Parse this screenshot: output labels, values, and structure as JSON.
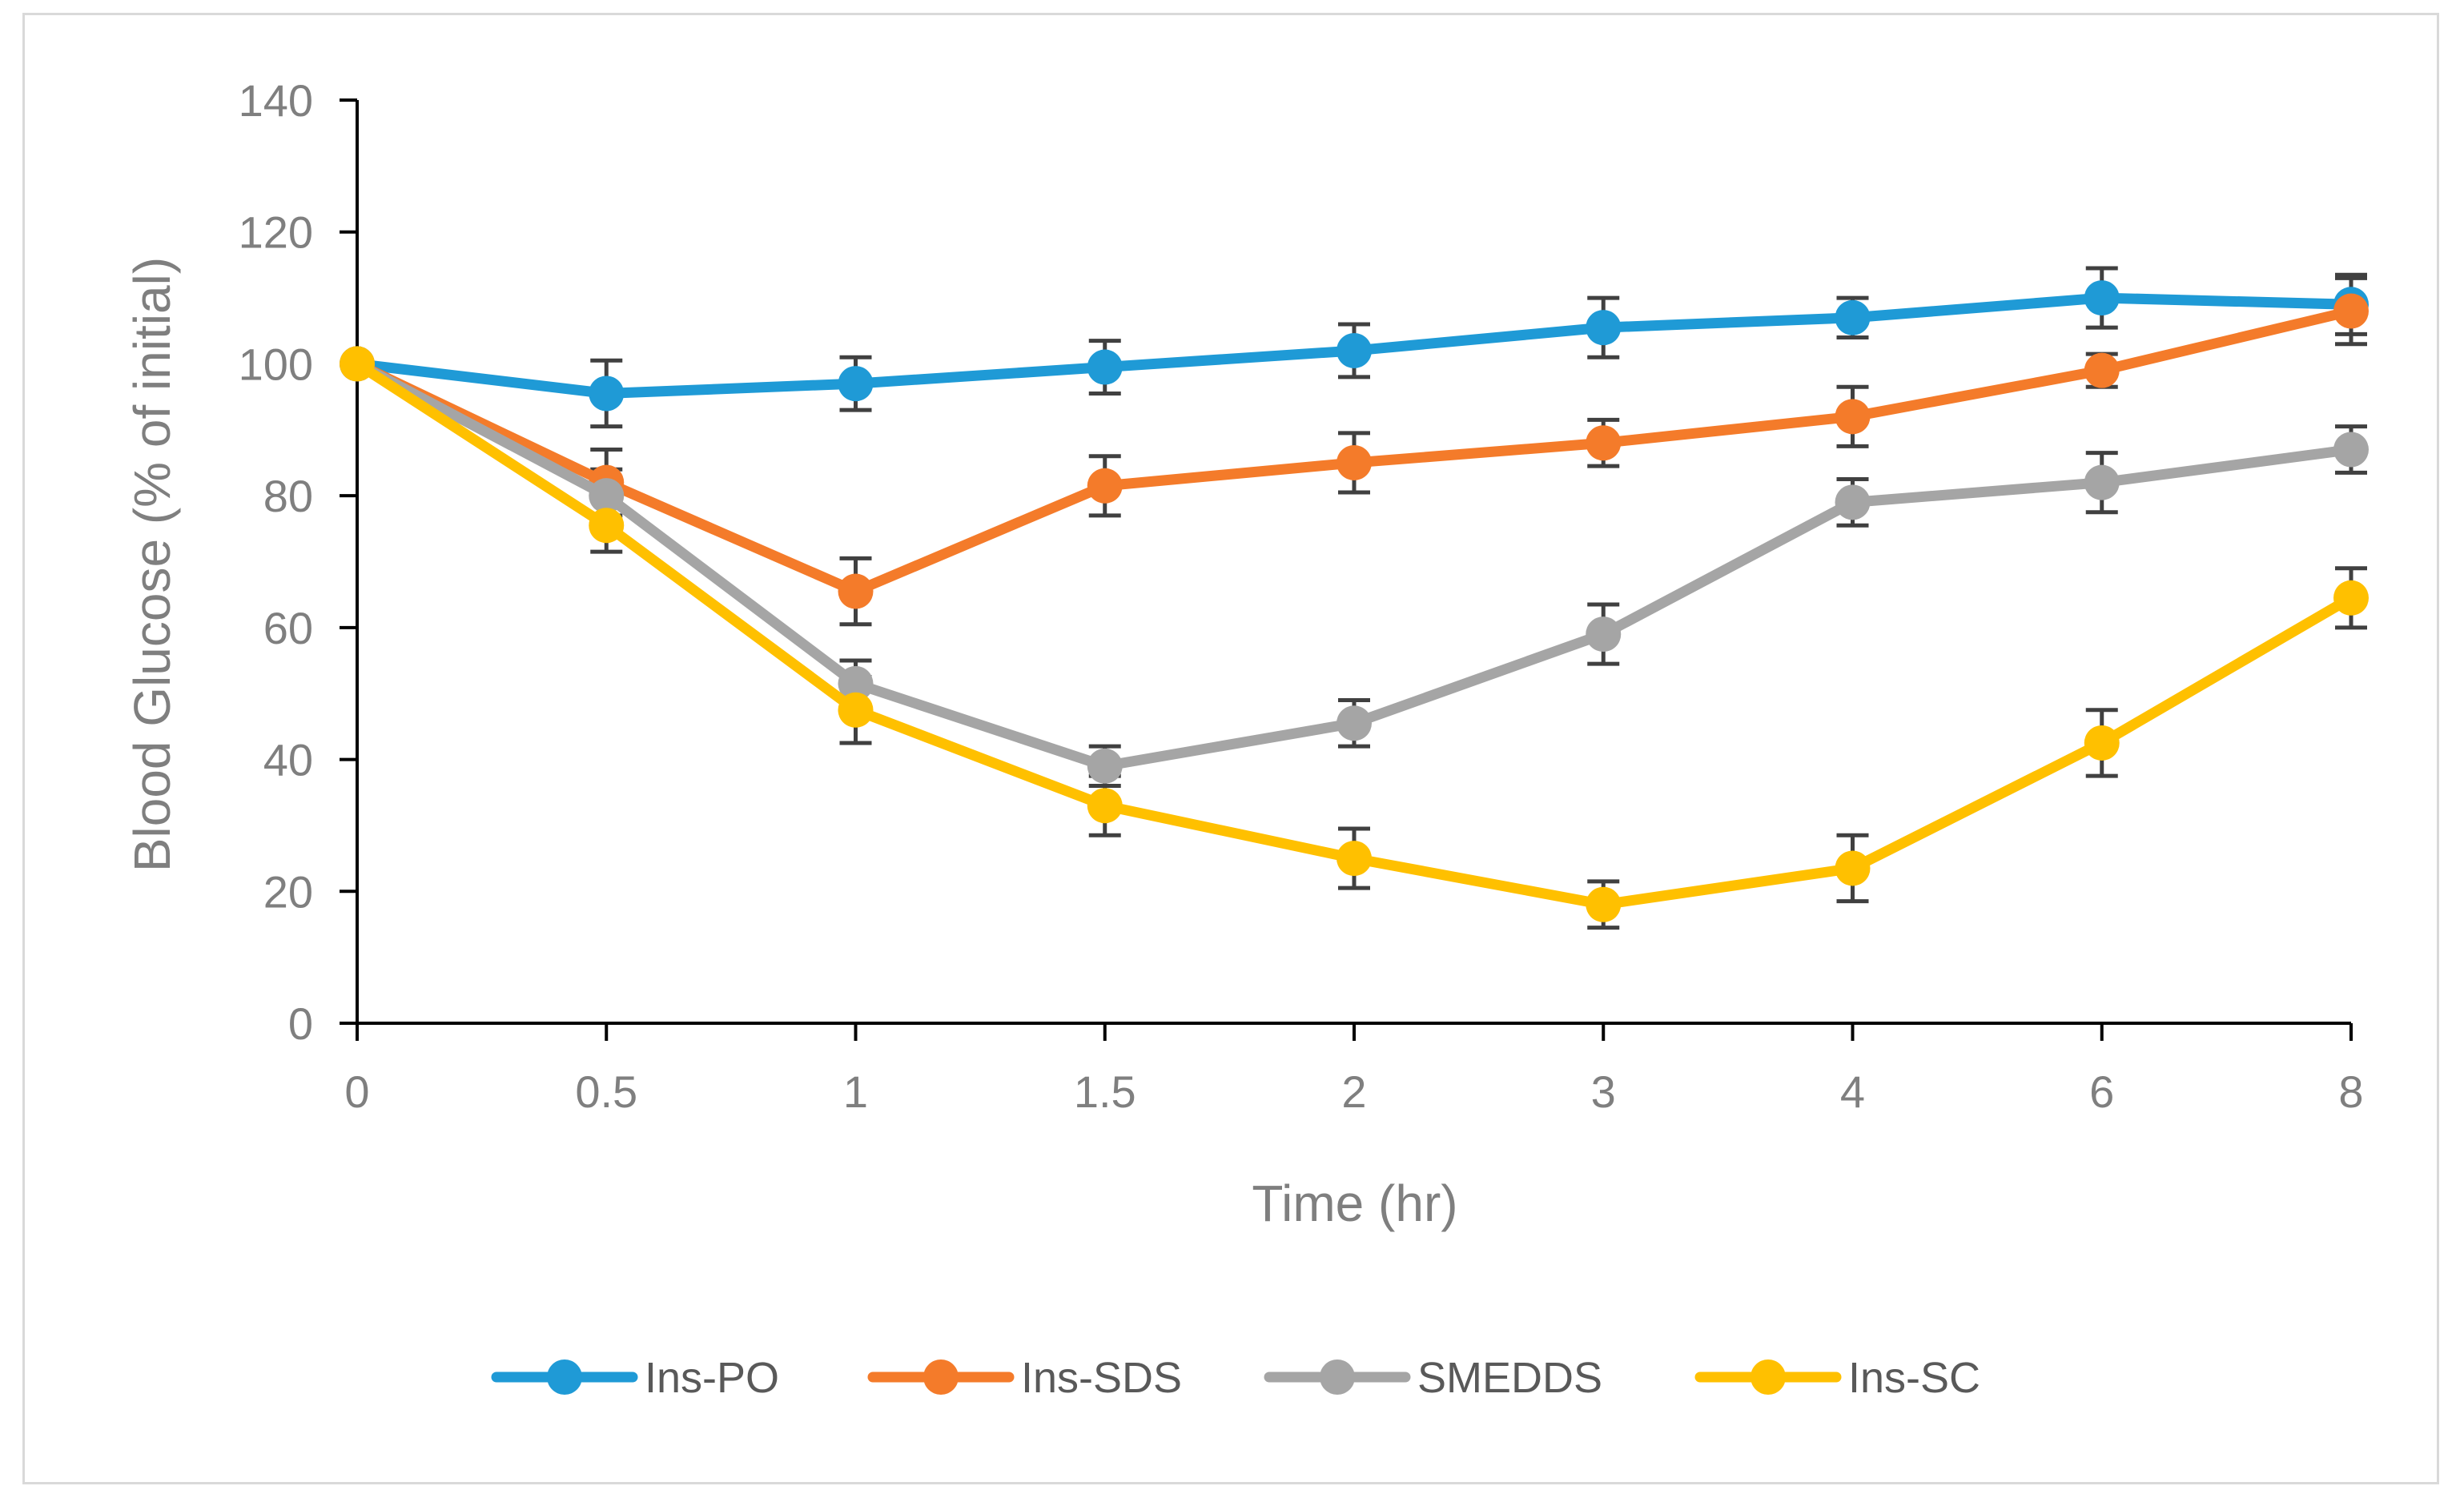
{
  "chart_data": {
    "type": "line",
    "title": "",
    "xlabel": "Time (hr)",
    "ylabel": "Blood Glucose (% of initial)",
    "categories": [
      "0",
      "0.5",
      "1",
      "1.5",
      "2",
      "3",
      "4",
      "6",
      "8"
    ],
    "ylim": [
      0,
      140
    ],
    "yticks": [
      0,
      20,
      40,
      60,
      80,
      100,
      120,
      140
    ],
    "grid": false,
    "legend_position": "bottom",
    "series": [
      {
        "name": "Ins-PO",
        "color": "#1f9ad6",
        "values": [
          100,
          95.5,
          97,
          99.5,
          102,
          105.5,
          107,
          110,
          109
        ],
        "errors": [
          0,
          5,
          4,
          4,
          4,
          4.5,
          3,
          4.5,
          4.5
        ]
      },
      {
        "name": "Ins-SDS",
        "color": "#f47b2a",
        "values": [
          100,
          82,
          65.5,
          81.5,
          85,
          88,
          92,
          99,
          108
        ],
        "errors": [
          0,
          5,
          5,
          4.5,
          4.5,
          3.5,
          4.5,
          2.5,
          5
        ]
      },
      {
        "name": "SMEDDS",
        "color": "#a5a5a5",
        "values": [
          100,
          80,
          51.5,
          39,
          45.5,
          59,
          79,
          82,
          87
        ],
        "errors": [
          0,
          4,
          3.5,
          3,
          3.5,
          4.5,
          3.5,
          4.5,
          3.5
        ]
      },
      {
        "name": "Ins-SC",
        "color": "#ffc000",
        "values": [
          100,
          75.5,
          47.5,
          33,
          25,
          18,
          23.5,
          42.5,
          64.5
        ],
        "errors": [
          0,
          4,
          5,
          4.5,
          4.5,
          3.5,
          5,
          5,
          4.5
        ]
      }
    ],
    "error_bar_color": "#404040"
  }
}
